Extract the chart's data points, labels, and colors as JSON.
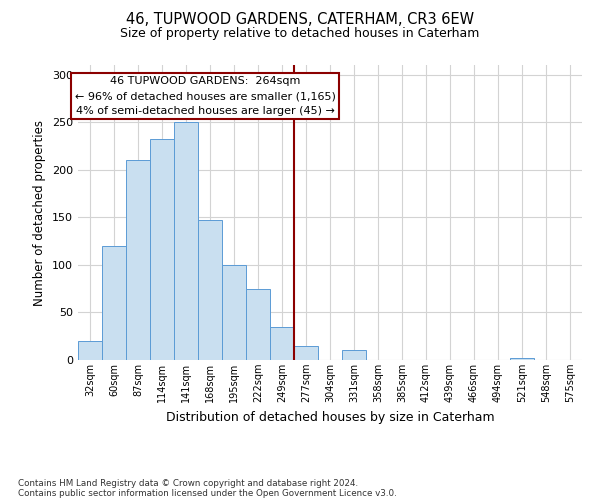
{
  "title": "46, TUPWOOD GARDENS, CATERHAM, CR3 6EW",
  "subtitle": "Size of property relative to detached houses in Caterham",
  "xlabel": "Distribution of detached houses by size in Caterham",
  "ylabel": "Number of detached properties",
  "bar_labels": [
    "32sqm",
    "60sqm",
    "87sqm",
    "114sqm",
    "141sqm",
    "168sqm",
    "195sqm",
    "222sqm",
    "249sqm",
    "277sqm",
    "304sqm",
    "331sqm",
    "358sqm",
    "385sqm",
    "412sqm",
    "439sqm",
    "466sqm",
    "494sqm",
    "521sqm",
    "548sqm",
    "575sqm"
  ],
  "bar_values": [
    20,
    120,
    210,
    232,
    250,
    147,
    100,
    75,
    35,
    15,
    0,
    10,
    0,
    0,
    0,
    0,
    0,
    0,
    2,
    0,
    0
  ],
  "bar_color": "#c9dff0",
  "bar_edgecolor": "#5b9bd5",
  "vline_color": "#8b0000",
  "annotation_line1": "46 TUPWOOD GARDENS:  264sqm",
  "annotation_line2": "← 96% of detached houses are smaller (1,165)",
  "annotation_line3": "4% of semi-detached houses are larger (45) →",
  "annotation_box_edgecolor": "#8b0000",
  "annotation_box_facecolor": "#ffffff",
  "ylim": [
    0,
    310
  ],
  "yticks": [
    0,
    50,
    100,
    150,
    200,
    250,
    300
  ],
  "footnote1": "Contains HM Land Registry data © Crown copyright and database right 2024.",
  "footnote2": "Contains public sector information licensed under the Open Government Licence v3.0.",
  "bg_color": "#ffffff",
  "grid_color": "#d3d3d3"
}
